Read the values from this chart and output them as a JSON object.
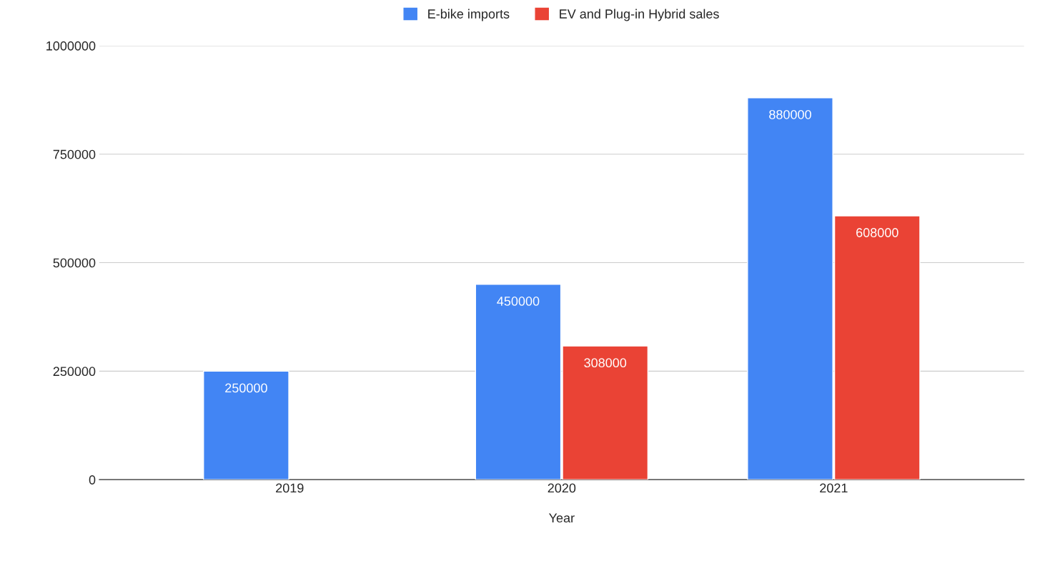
{
  "chart_data": {
    "type": "bar",
    "xlabel": "Year",
    "categories": [
      "2019",
      "2020",
      "2021"
    ],
    "series": [
      {
        "name": "E-bike imports",
        "color": "#4285f4",
        "values": [
          250000,
          450000,
          880000
        ]
      },
      {
        "name": "EV and Plug-in Hybrid sales",
        "color": "#ea4335",
        "values": [
          null,
          308000,
          608000
        ]
      }
    ],
    "ylim": [
      0,
      1000000
    ],
    "yticks": [
      0,
      250000,
      500000,
      750000,
      1000000
    ],
    "grid": "y",
    "legend": "top",
    "data_labels": true
  }
}
